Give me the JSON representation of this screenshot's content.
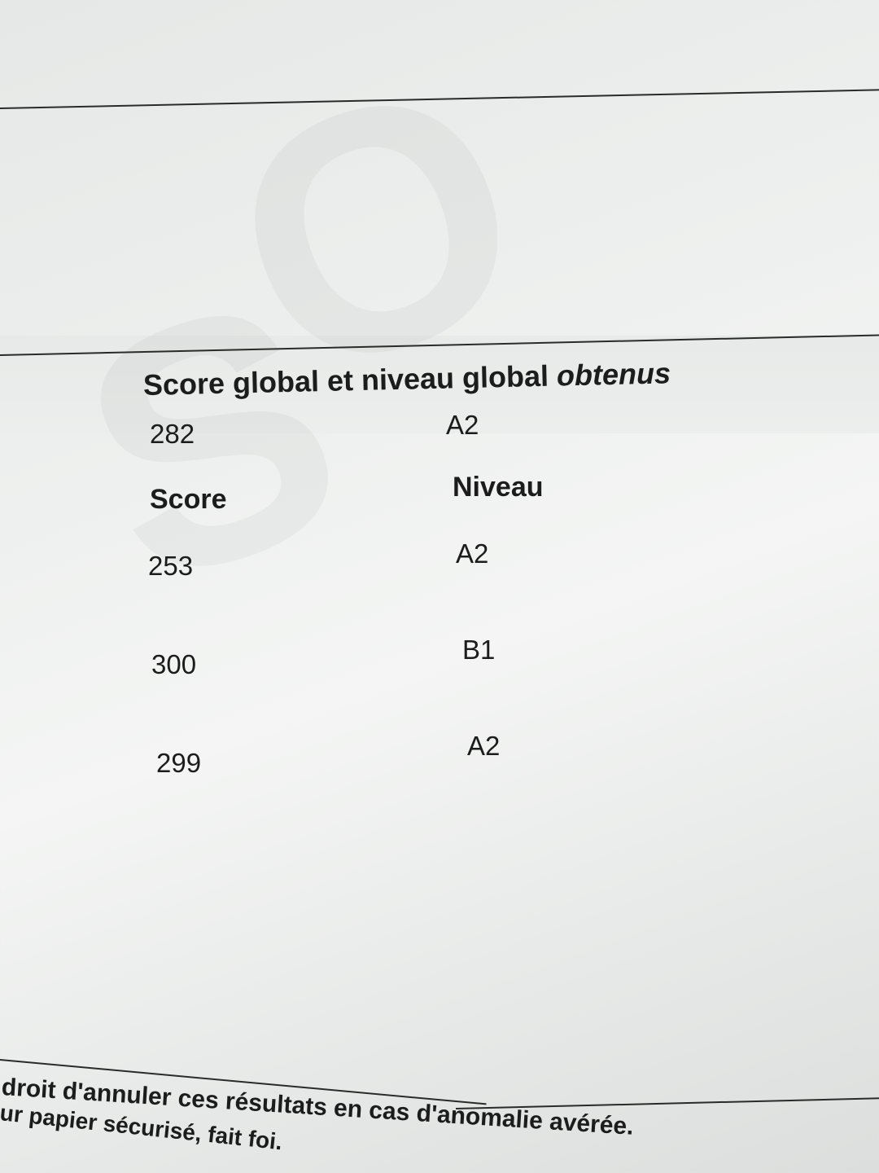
{
  "global": {
    "title_prefix": "Score global et niveau global ",
    "title_italic": "obtenus",
    "score": "282",
    "level": "A2"
  },
  "table": {
    "headers": [
      "Score",
      "Niveau"
    ],
    "rows": [
      {
        "score": "253",
        "level": "A2"
      },
      {
        "score": "300",
        "level": "B1"
      },
      {
        "score": "299",
        "level": "A2"
      }
    ]
  },
  "footer": {
    "line1": "droit d'annuler ces résultats en cas d'anomalie avérée.",
    "line2": "ur papier sécurisé, fait foi."
  }
}
